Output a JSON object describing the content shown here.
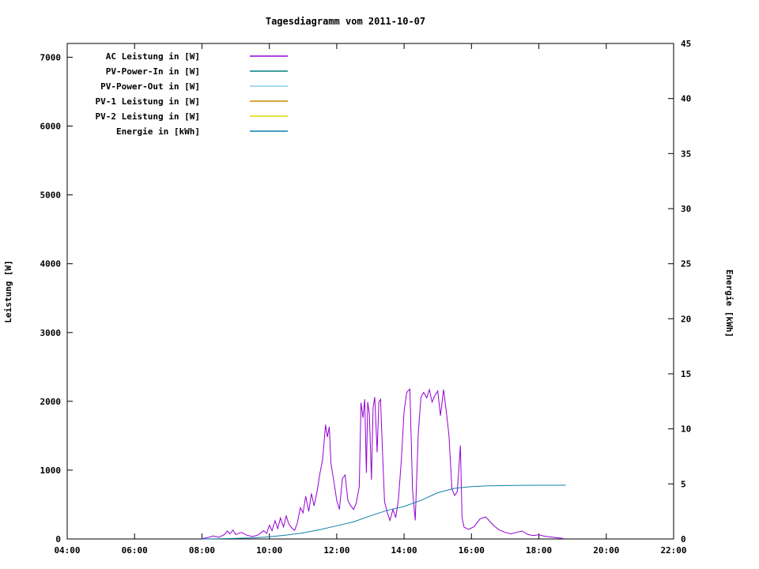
{
  "chart_data": {
    "type": "line",
    "title": "Tagesdiagramm vom 2011-10-07",
    "ylabel_left": "Leistung [W]",
    "ylabel_right": "Energie [kWh]",
    "x_range_hours": [
      4,
      22
    ],
    "x_tick_hours": [
      4,
      6,
      8,
      10,
      12,
      14,
      16,
      18,
      20,
      22
    ],
    "x_tick_labels": [
      "04:00",
      "06:00",
      "08:00",
      "10:00",
      "12:00",
      "14:00",
      "16:00",
      "18:00",
      "20:00",
      "22:00"
    ],
    "y_left_range": [
      0,
      7200
    ],
    "y_left_ticks": [
      0,
      1000,
      2000,
      3000,
      4000,
      5000,
      6000,
      7000
    ],
    "y_right_range": [
      0,
      45
    ],
    "y_right_ticks": [
      0,
      5,
      10,
      15,
      20,
      25,
      30,
      35,
      40,
      45
    ],
    "grid": false,
    "legend_position": "top-left",
    "series": [
      {
        "name": "ac-leistung",
        "label": "AC Leistung in [W]",
        "color": "#9400d3",
        "axis": "left",
        "points": [
          [
            8.0,
            5
          ],
          [
            8.17,
            20
          ],
          [
            8.33,
            45
          ],
          [
            8.5,
            25
          ],
          [
            8.67,
            65
          ],
          [
            8.75,
            115
          ],
          [
            8.83,
            75
          ],
          [
            8.92,
            130
          ],
          [
            9.0,
            65
          ],
          [
            9.17,
            95
          ],
          [
            9.33,
            55
          ],
          [
            9.5,
            35
          ],
          [
            9.67,
            60
          ],
          [
            9.83,
            120
          ],
          [
            9.92,
            80
          ],
          [
            10.0,
            200
          ],
          [
            10.08,
            120
          ],
          [
            10.17,
            265
          ],
          [
            10.25,
            150
          ],
          [
            10.33,
            305
          ],
          [
            10.42,
            175
          ],
          [
            10.5,
            335
          ],
          [
            10.58,
            215
          ],
          [
            10.67,
            160
          ],
          [
            10.75,
            125
          ],
          [
            10.83,
            230
          ],
          [
            10.92,
            455
          ],
          [
            11.0,
            380
          ],
          [
            11.08,
            620
          ],
          [
            11.17,
            400
          ],
          [
            11.25,
            660
          ],
          [
            11.33,
            480
          ],
          [
            11.42,
            700
          ],
          [
            11.5,
            950
          ],
          [
            11.58,
            1150
          ],
          [
            11.67,
            1660
          ],
          [
            11.72,
            1480
          ],
          [
            11.78,
            1630
          ],
          [
            11.83,
            1100
          ],
          [
            11.92,
            820
          ],
          [
            12.0,
            560
          ],
          [
            12.08,
            430
          ],
          [
            12.17,
            880
          ],
          [
            12.25,
            930
          ],
          [
            12.33,
            560
          ],
          [
            12.42,
            480
          ],
          [
            12.5,
            430
          ],
          [
            12.58,
            520
          ],
          [
            12.67,
            760
          ],
          [
            12.72,
            1980
          ],
          [
            12.78,
            1760
          ],
          [
            12.83,
            2030
          ],
          [
            12.88,
            960
          ],
          [
            12.92,
            1990
          ],
          [
            12.97,
            1810
          ],
          [
            13.03,
            860
          ],
          [
            13.08,
            1910
          ],
          [
            13.13,
            2060
          ],
          [
            13.2,
            1260
          ],
          [
            13.25,
            1990
          ],
          [
            13.3,
            2030
          ],
          [
            13.37,
            1120
          ],
          [
            13.42,
            540
          ],
          [
            13.5,
            390
          ],
          [
            13.58,
            270
          ],
          [
            13.67,
            430
          ],
          [
            13.75,
            310
          ],
          [
            13.83,
            570
          ],
          [
            13.92,
            1160
          ],
          [
            14.0,
            1860
          ],
          [
            14.08,
            2130
          ],
          [
            14.17,
            2180
          ],
          [
            14.25,
            710
          ],
          [
            14.33,
            270
          ],
          [
            14.42,
            1520
          ],
          [
            14.5,
            2060
          ],
          [
            14.58,
            2130
          ],
          [
            14.67,
            2050
          ],
          [
            14.75,
            2170
          ],
          [
            14.83,
            1990
          ],
          [
            14.92,
            2090
          ],
          [
            15.0,
            2150
          ],
          [
            15.08,
            1790
          ],
          [
            15.17,
            2170
          ],
          [
            15.25,
            1860
          ],
          [
            15.33,
            1510
          ],
          [
            15.42,
            730
          ],
          [
            15.5,
            630
          ],
          [
            15.58,
            690
          ],
          [
            15.67,
            1360
          ],
          [
            15.72,
            310
          ],
          [
            15.78,
            170
          ],
          [
            15.92,
            140
          ],
          [
            16.08,
            180
          ],
          [
            16.25,
            290
          ],
          [
            16.42,
            320
          ],
          [
            16.5,
            280
          ],
          [
            16.67,
            190
          ],
          [
            16.83,
            130
          ],
          [
            17.0,
            95
          ],
          [
            17.17,
            75
          ],
          [
            17.33,
            95
          ],
          [
            17.5,
            115
          ],
          [
            17.67,
            65
          ],
          [
            17.83,
            50
          ],
          [
            18.0,
            60
          ],
          [
            18.17,
            40
          ],
          [
            18.33,
            30
          ],
          [
            18.5,
            20
          ],
          [
            18.67,
            10
          ],
          [
            18.75,
            5
          ]
        ]
      },
      {
        "name": "pv-power-in",
        "label": "PV-Power-In in [W]",
        "color": "#008080",
        "axis": "left",
        "points": []
      },
      {
        "name": "pv-power-out",
        "label": "PV-Power-Out in [W]",
        "color": "#87ceeb",
        "axis": "left",
        "points": []
      },
      {
        "name": "pv-1-leistung",
        "label": "PV-1 Leistung in [W]",
        "color": "#cc8800",
        "axis": "left",
        "points": []
      },
      {
        "name": "pv-2-leistung",
        "label": "PV-2 Leistung in [W]",
        "color": "#d8d800",
        "axis": "left",
        "points": []
      },
      {
        "name": "energie",
        "label": "Energie in [kWh]",
        "color": "#0f7fa8",
        "axis": "right",
        "points": [
          [
            8.0,
            0
          ],
          [
            8.5,
            0.02
          ],
          [
            9.0,
            0.05
          ],
          [
            9.5,
            0.1
          ],
          [
            10.0,
            0.2
          ],
          [
            10.5,
            0.35
          ],
          [
            11.0,
            0.55
          ],
          [
            11.5,
            0.85
          ],
          [
            12.0,
            1.2
          ],
          [
            12.5,
            1.55
          ],
          [
            13.0,
            2.1
          ],
          [
            13.5,
            2.6
          ],
          [
            14.0,
            2.95
          ],
          [
            14.5,
            3.5
          ],
          [
            15.0,
            4.2
          ],
          [
            15.5,
            4.6
          ],
          [
            16.0,
            4.75
          ],
          [
            16.5,
            4.82
          ],
          [
            17.0,
            4.85
          ],
          [
            17.5,
            4.87
          ],
          [
            18.0,
            4.88
          ],
          [
            18.8,
            4.88
          ]
        ]
      }
    ]
  }
}
